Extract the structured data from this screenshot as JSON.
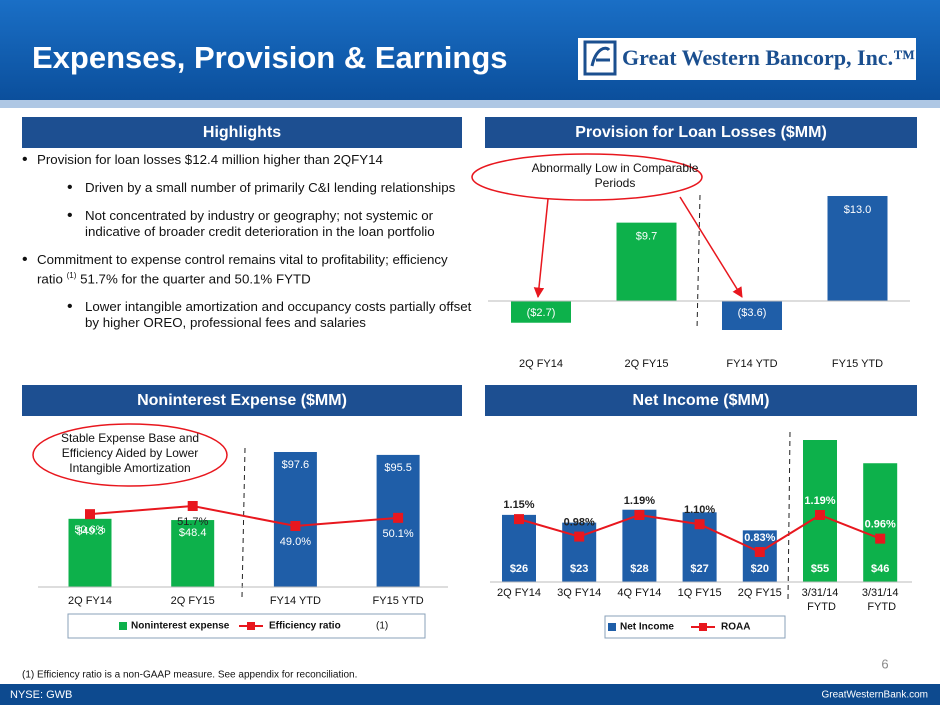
{
  "header": {
    "title": "Expenses, Provision & Earnings",
    "logo": "Great Western Bancorp, Inc.™"
  },
  "highlights": {
    "title": "Highlights",
    "bullets": [
      {
        "text": "Provision for loan losses $12.4 million higher than 2QFY14",
        "sub": [
          "Driven by a small number of primarily C&I lending relationships",
          "Not concentrated by industry or geography; not systemic or indicative of broader credit deterioration in the loan portfolio"
        ]
      },
      {
        "text": "Commitment to expense control remains vital to profitability; efficiency ratio",
        "note": "(1)",
        "text_end": "51.7% for the quarter and 50.1% FYTD",
        "sub": [
          "Lower intangible amortization and occupancy costs partially offset by higher OREO, professional fees and salaries"
        ]
      }
    ]
  },
  "chart_data": [
    {
      "type": "bar",
      "title": "Provision for Loan Losses ($MM)",
      "annotation": "Abnormally Low in Comparable Periods",
      "categories": [
        "2Q FY14",
        "2Q FY15",
        "FY14 YTD",
        "FY15 YTD"
      ],
      "values": [
        -2.7,
        9.7,
        -3.6,
        13.0
      ],
      "value_labels": [
        "($2.7)",
        "$9.7",
        "($3.6)",
        "$13.0"
      ],
      "colors": [
        "#0db14b",
        "#0db14b",
        "#1f5ea8",
        "#1f5ea8"
      ]
    },
    {
      "type": "combo",
      "title": "Noninterest Expense ($MM)",
      "annotation": "Stable Expense Base and Efficiency Aided by Lower Intangible Amortization",
      "legend_note": "(1)",
      "categories": [
        "2Q FY14",
        "2Q FY15",
        "FY14 YTD",
        "FY15 YTD"
      ],
      "series": [
        {
          "name": "Noninterest expense",
          "color": "#0db14b",
          "colors": [
            "#0db14b",
            "#0db14b",
            "#1f5ea8",
            "#1f5ea8"
          ],
          "values": [
            49.3,
            48.4,
            97.6,
            95.5
          ],
          "value_labels": [
            "$49.3",
            "$48.4",
            "$97.6",
            "$95.5"
          ]
        },
        {
          "name": "Efficiency ratio",
          "color": "#e8171e",
          "axis": "y2",
          "values": [
            50.6,
            51.7,
            49.0,
            50.1
          ],
          "value_labels": [
            "50.6%",
            "51.7%",
            "49.0%",
            "50.1%"
          ]
        }
      ]
    },
    {
      "type": "combo",
      "title": "Net Income ($MM)",
      "categories": [
        "2Q FY14",
        "3Q FY14",
        "4Q FY14",
        "1Q FY15",
        "2Q FY15",
        "3/31/14 FYTD",
        "3/31/14 FYTD"
      ],
      "series": [
        {
          "name": "Net Income",
          "color": "#1f5ea8",
          "colors": [
            "#1f5ea8",
            "#1f5ea8",
            "#1f5ea8",
            "#1f5ea8",
            "#1f5ea8",
            "#0db14b",
            "#0db14b"
          ],
          "values": [
            26,
            23,
            28,
            27,
            20,
            55,
            46
          ],
          "value_labels": [
            "$26",
            "$23",
            "$28",
            "$27",
            "$20",
            "$55",
            "$46"
          ]
        },
        {
          "name": "ROAA",
          "color": "#e8171e",
          "axis": "y2",
          "values": [
            1.15,
            0.98,
            1.19,
            1.1,
            0.83,
            1.19,
            0.96
          ],
          "value_labels": [
            "1.15%",
            "0.98%",
            "1.19%",
            "1.10%",
            "0.83%",
            "1.19%",
            "0.96%"
          ]
        }
      ]
    }
  ],
  "footnote": "(1) Efficiency ratio is a non-GAAP measure.  See appendix for reconciliation.",
  "page_number": 6,
  "footer": {
    "ticker": "NYSE: GWB",
    "website": "GreatWesternBank.com"
  }
}
